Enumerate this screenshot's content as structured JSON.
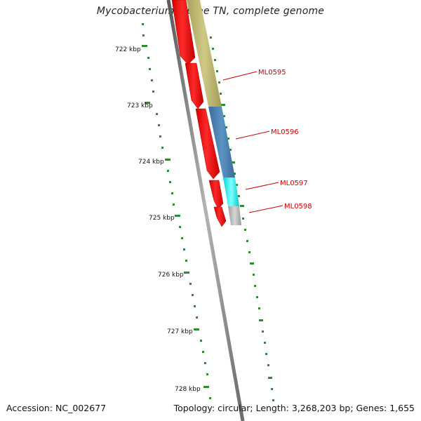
{
  "title": "Mycobacterium leprae TN, complete genome",
  "footer": {
    "accession": "Accession: NC_002677",
    "summary": "Topology: circular; Length: 3,268,203 bp; Genes: 1,655"
  },
  "scale_labels": [
    "722 kbp",
    "723 kbp",
    "724 kbp",
    "725 kbp",
    "726 kbp",
    "727 kbp",
    "728 kbp"
  ],
  "genes": [
    {
      "name": "ML0595",
      "color": "#bdb76b"
    },
    {
      "name": "ML0596",
      "color": "#4682b4"
    },
    {
      "name": "ML0597",
      "color": "#00ffff"
    },
    {
      "name": "ML0598",
      "color": "#c0c0c0"
    }
  ],
  "colors": {
    "backbone": "#8c8c8c",
    "reverse_strand": "#ff0000",
    "tick": "#2e8b2e",
    "gene_label": "#cc0000"
  }
}
